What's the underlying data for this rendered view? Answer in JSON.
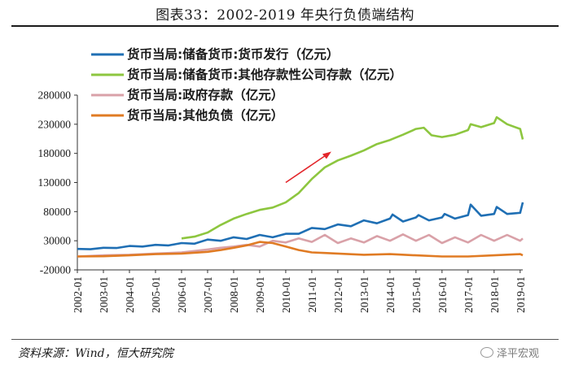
{
  "header": {
    "title": "图表33：2002-2019 年央行负债端结构"
  },
  "footer": {
    "source": "资料来源：Wind，恒大研究院",
    "watermark": "泽平宏观"
  },
  "chart_data": {
    "type": "line",
    "title": "图表33：2002-2019 年央行负债端结构",
    "xlabel": "",
    "ylabel": "",
    "x_ticks": [
      "2002-01",
      "2003-01",
      "2004-01",
      "2005-01",
      "2006-01",
      "2007-01",
      "2008-01",
      "2009-01",
      "2010-01",
      "2011-01",
      "2012-01",
      "2013-01",
      "2014-01",
      "2015-01",
      "2016-01",
      "2017-01",
      "2018-01",
      "2019-01"
    ],
    "y_ticks": [
      280000,
      230000,
      180000,
      130000,
      80000,
      30000,
      -20000
    ],
    "y_tick_labels": [
      "280000",
      "230000",
      "180000",
      "130000",
      "80000",
      "30000",
      "-20000"
    ],
    "xlim": [
      2002.0,
      2019.1
    ],
    "ylim": [
      -20000,
      280000
    ],
    "legend_position": "top-left",
    "annotation": "red-arrow-upward-trend",
    "series": [
      {
        "name": "货币当局:储备货币:货币发行（亿元）",
        "color": "#1f6fb4",
        "points": [
          [
            2002.0,
            16000
          ],
          [
            2002.5,
            15500
          ],
          [
            2003.0,
            18000
          ],
          [
            2003.5,
            17500
          ],
          [
            2004.0,
            21000
          ],
          [
            2004.5,
            20000
          ],
          [
            2005.0,
            23000
          ],
          [
            2005.5,
            22000
          ],
          [
            2006.0,
            26000
          ],
          [
            2006.5,
            25000
          ],
          [
            2007.0,
            32000
          ],
          [
            2007.5,
            30000
          ],
          [
            2008.0,
            36000
          ],
          [
            2008.5,
            33000
          ],
          [
            2009.0,
            40000
          ],
          [
            2009.5,
            36000
          ],
          [
            2010.0,
            42000
          ],
          [
            2010.5,
            42000
          ],
          [
            2011.0,
            52000
          ],
          [
            2011.5,
            50000
          ],
          [
            2012.0,
            58000
          ],
          [
            2012.5,
            55000
          ],
          [
            2013.0,
            65000
          ],
          [
            2013.5,
            60000
          ],
          [
            2014.0,
            68000
          ],
          [
            2014.1,
            75000
          ],
          [
            2014.5,
            63000
          ],
          [
            2015.0,
            70000
          ],
          [
            2015.1,
            74000
          ],
          [
            2015.5,
            65000
          ],
          [
            2016.0,
            70000
          ],
          [
            2016.1,
            76000
          ],
          [
            2016.5,
            68000
          ],
          [
            2017.0,
            74000
          ],
          [
            2017.1,
            92000
          ],
          [
            2017.5,
            73000
          ],
          [
            2018.0,
            76000
          ],
          [
            2018.1,
            88000
          ],
          [
            2018.5,
            76000
          ],
          [
            2019.0,
            78000
          ],
          [
            2019.1,
            96000
          ]
        ]
      },
      {
        "name": "货币当局:储备货币:其他存款性公司存款（亿元）",
        "color": "#8dc63f",
        "points": [
          [
            2006.0,
            34000
          ],
          [
            2006.5,
            37000
          ],
          [
            2007.0,
            44000
          ],
          [
            2007.5,
            57000
          ],
          [
            2008.0,
            68000
          ],
          [
            2008.5,
            76000
          ],
          [
            2009.0,
            83000
          ],
          [
            2009.5,
            87000
          ],
          [
            2010.0,
            96000
          ],
          [
            2010.5,
            112000
          ],
          [
            2011.0,
            136000
          ],
          [
            2011.5,
            156000
          ],
          [
            2012.0,
            168000
          ],
          [
            2012.5,
            176000
          ],
          [
            2013.0,
            185000
          ],
          [
            2013.5,
            196000
          ],
          [
            2014.0,
            203000
          ],
          [
            2014.5,
            212000
          ],
          [
            2015.0,
            222000
          ],
          [
            2015.3,
            224000
          ],
          [
            2015.6,
            211000
          ],
          [
            2016.0,
            208000
          ],
          [
            2016.5,
            212000
          ],
          [
            2017.0,
            220000
          ],
          [
            2017.1,
            230000
          ],
          [
            2017.5,
            225000
          ],
          [
            2018.0,
            232000
          ],
          [
            2018.1,
            242000
          ],
          [
            2018.5,
            230000
          ],
          [
            2019.0,
            222000
          ],
          [
            2019.1,
            204000
          ]
        ]
      },
      {
        "name": "货币当局:政府存款（亿元）",
        "color": "#d9a1a8",
        "points": [
          [
            2002.0,
            3000
          ],
          [
            2003.0,
            5000
          ],
          [
            2004.0,
            6000
          ],
          [
            2005.0,
            8000
          ],
          [
            2006.0,
            10000
          ],
          [
            2007.0,
            15000
          ],
          [
            2007.5,
            18000
          ],
          [
            2008.0,
            20000
          ],
          [
            2008.5,
            23000
          ],
          [
            2009.0,
            20000
          ],
          [
            2009.5,
            30000
          ],
          [
            2010.0,
            27000
          ],
          [
            2010.5,
            34000
          ],
          [
            2011.0,
            28000
          ],
          [
            2011.5,
            40000
          ],
          [
            2012.0,
            26000
          ],
          [
            2012.5,
            34000
          ],
          [
            2013.0,
            27000
          ],
          [
            2013.5,
            38000
          ],
          [
            2014.0,
            30000
          ],
          [
            2014.5,
            41000
          ],
          [
            2015.0,
            30000
          ],
          [
            2015.5,
            40000
          ],
          [
            2016.0,
            26000
          ],
          [
            2016.5,
            36000
          ],
          [
            2017.0,
            27000
          ],
          [
            2017.5,
            40000
          ],
          [
            2018.0,
            30000
          ],
          [
            2018.5,
            40000
          ],
          [
            2019.0,
            30000
          ],
          [
            2019.1,
            34000
          ]
        ]
      },
      {
        "name": "货币当局:其他负债（亿元）",
        "color": "#e07b24",
        "points": [
          [
            2002.0,
            3000
          ],
          [
            2003.0,
            3500
          ],
          [
            2004.0,
            5000
          ],
          [
            2005.0,
            7000
          ],
          [
            2006.0,
            8000
          ],
          [
            2007.0,
            11000
          ],
          [
            2007.5,
            14000
          ],
          [
            2008.0,
            18000
          ],
          [
            2008.5,
            22000
          ],
          [
            2009.0,
            28000
          ],
          [
            2009.5,
            26000
          ],
          [
            2010.0,
            20000
          ],
          [
            2010.5,
            14000
          ],
          [
            2011.0,
            10000
          ],
          [
            2011.5,
            9000
          ],
          [
            2012.0,
            8000
          ],
          [
            2013.0,
            6000
          ],
          [
            2014.0,
            7000
          ],
          [
            2015.0,
            5000
          ],
          [
            2016.0,
            3000
          ],
          [
            2017.0,
            3000
          ],
          [
            2018.0,
            5000
          ],
          [
            2019.0,
            7000
          ],
          [
            2019.1,
            5000
          ]
        ]
      }
    ]
  }
}
